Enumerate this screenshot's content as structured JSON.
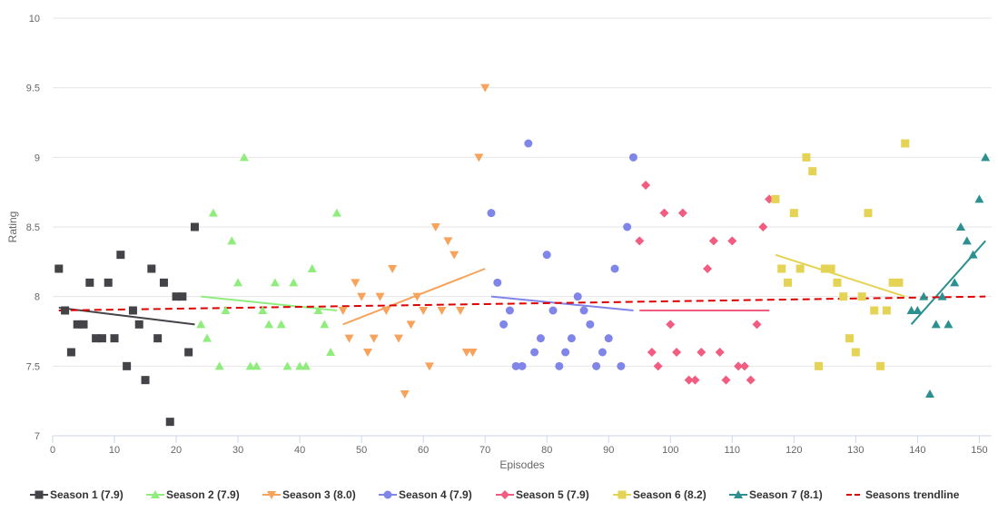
{
  "chart_data": {
    "type": "scatter",
    "title": "",
    "xlabel": "Episodes",
    "ylabel": "Rating",
    "xlim": [
      0,
      152
    ],
    "ylim": [
      7,
      10
    ],
    "xticks": [
      0,
      10,
      20,
      30,
      40,
      50,
      60,
      70,
      80,
      90,
      100,
      110,
      120,
      130,
      140,
      150
    ],
    "yticks": [
      7,
      7.5,
      8,
      8.5,
      9,
      9.5,
      10
    ],
    "ytick_labels": [
      "7",
      "7.5",
      "8",
      "8.5",
      "9",
      "9.5",
      "10"
    ],
    "grid": "horizontal",
    "legend_position": "bottom",
    "series": [
      {
        "name": "Season 1 (7.9)",
        "color": "#434348",
        "marker": "square",
        "x": [
          1,
          2,
          3,
          4,
          5,
          6,
          7,
          8,
          9,
          10,
          11,
          12,
          13,
          14,
          15,
          16,
          17,
          18,
          19,
          20,
          21,
          22,
          23
        ],
        "y": [
          8.2,
          7.9,
          7.6,
          7.8,
          7.8,
          8.1,
          7.7,
          7.7,
          8.1,
          7.7,
          8.3,
          7.5,
          7.9,
          7.8,
          7.4,
          8.2,
          7.7,
          8.1,
          7.1,
          8.0,
          8.0,
          7.6,
          8.5
        ],
        "trendline": {
          "x": [
            1,
            23
          ],
          "y": [
            7.92,
            7.8
          ]
        }
      },
      {
        "name": "Season 2 (7.9)",
        "color": "#90ed7d",
        "marker": "triangle",
        "x": [
          24,
          25,
          26,
          27,
          28,
          29,
          30,
          31,
          32,
          33,
          34,
          35,
          36,
          37,
          38,
          39,
          40,
          41,
          42,
          43,
          44,
          45,
          46
        ],
        "y": [
          7.8,
          7.7,
          8.6,
          7.5,
          7.9,
          8.4,
          8.1,
          9.0,
          7.5,
          7.5,
          7.9,
          7.8,
          8.1,
          7.8,
          7.5,
          8.1,
          7.5,
          7.5,
          8.2,
          7.9,
          7.8,
          7.6,
          8.6
        ],
        "trendline": {
          "x": [
            24,
            46
          ],
          "y": [
            8.0,
            7.9
          ]
        }
      },
      {
        "name": "Season 3 (8.0)",
        "color": "#f7a35c",
        "marker": "triangle-down",
        "x": [
          47,
          48,
          49,
          50,
          51,
          52,
          53,
          54,
          55,
          56,
          57,
          58,
          59,
          60,
          61,
          62,
          63,
          64,
          65,
          66,
          67,
          68,
          69,
          70
        ],
        "y": [
          7.9,
          7.7,
          8.1,
          8.0,
          7.6,
          7.7,
          8.0,
          7.9,
          8.2,
          7.7,
          7.3,
          7.8,
          8.0,
          7.9,
          7.5,
          8.5,
          7.9,
          8.4,
          8.3,
          7.9,
          7.6,
          7.6,
          9.0,
          9.5
        ],
        "trendline": {
          "x": [
            47,
            70
          ],
          "y": [
            7.8,
            8.2
          ]
        }
      },
      {
        "name": "Season 4 (7.9)",
        "color": "#8085e9",
        "marker": "circle",
        "x": [
          71,
          72,
          73,
          74,
          75,
          76,
          77,
          78,
          79,
          80,
          81,
          82,
          83,
          84,
          85,
          86,
          87,
          88,
          89,
          90,
          91,
          92,
          93,
          94
        ],
        "y": [
          8.6,
          8.1,
          7.8,
          7.9,
          7.5,
          7.5,
          9.1,
          7.6,
          7.7,
          8.3,
          7.9,
          7.5,
          7.6,
          7.7,
          8.0,
          7.9,
          7.8,
          7.5,
          7.6,
          7.7,
          8.2,
          7.5,
          8.5,
          9.0
        ],
        "trendline": {
          "x": [
            71,
            94
          ],
          "y": [
            8.0,
            7.9
          ]
        }
      },
      {
        "name": "Season 5 (7.9)",
        "color": "#f15c80",
        "marker": "diamond",
        "x": [
          95,
          96,
          97,
          98,
          99,
          100,
          101,
          102,
          103,
          104,
          105,
          106,
          107,
          108,
          109,
          110,
          111,
          112,
          113,
          114,
          115,
          116
        ],
        "y": [
          8.4,
          8.8,
          7.6,
          7.5,
          8.6,
          7.8,
          7.6,
          8.6,
          7.4,
          7.4,
          7.6,
          8.2,
          8.4,
          7.6,
          7.4,
          8.4,
          7.5,
          7.5,
          7.4,
          7.8,
          8.5,
          8.7
        ],
        "trendline": {
          "x": [
            95,
            116
          ],
          "y": [
            7.9,
            7.9
          ]
        }
      },
      {
        "name": "Season 6 (8.2)",
        "color": "#e4d354",
        "marker": "square",
        "x": [
          117,
          118,
          119,
          120,
          121,
          122,
          123,
          124,
          125,
          126,
          127,
          128,
          129,
          130,
          131,
          132,
          133,
          134,
          135,
          136,
          137,
          138
        ],
        "y": [
          8.7,
          8.2,
          8.1,
          8.6,
          8.2,
          9.0,
          8.9,
          7.5,
          8.2,
          8.2,
          8.1,
          8.0,
          7.7,
          7.6,
          8.0,
          8.6,
          7.9,
          7.5,
          7.9,
          8.1,
          8.1,
          9.1
        ],
        "trendline": {
          "x": [
            117,
            138
          ],
          "y": [
            8.3,
            8.0
          ]
        }
      },
      {
        "name": "Season 7 (8.1)",
        "color": "#2b908f",
        "marker": "triangle",
        "x": [
          139,
          140,
          141,
          142,
          143,
          144,
          145,
          146,
          147,
          148,
          149,
          150,
          151
        ],
        "y": [
          7.9,
          7.9,
          8.0,
          7.3,
          7.8,
          8.0,
          7.8,
          8.1,
          8.5,
          8.4,
          8.3,
          8.7,
          9.0
        ],
        "trendline": {
          "x": [
            139,
            151
          ],
          "y": [
            7.8,
            8.4
          ]
        }
      }
    ],
    "overall_trendline": {
      "name": "Seasons trendline",
      "color": "#dd0000",
      "dash": "dashed",
      "x": [
        1,
        151
      ],
      "y": [
        7.9,
        8.0
      ]
    }
  }
}
